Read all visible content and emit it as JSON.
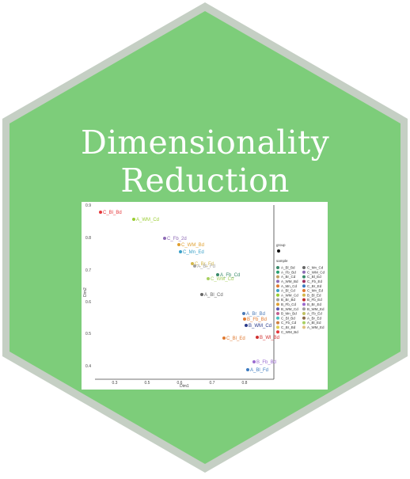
{
  "title": "Dimensionality Reduction",
  "colors": {
    "hex_fill": "#7dcd7a",
    "hex_border": "#c5cfc4",
    "title_text": "#ffffff"
  },
  "plot_icon": {
    "x_ticks": [
      "0.3",
      "0.5",
      "0.6",
      "0.7",
      "0.8"
    ],
    "y_ticks": [
      "0.9",
      "0.8",
      "0.7",
      "0.6",
      "0.5",
      "0.4"
    ],
    "xlabel": "Dim1",
    "ylabel": "Dim2",
    "legend_group_title": "group",
    "legend_sample_title": "sample",
    "points": [
      {
        "label": "C_Bl_Bd",
        "color": "#e5383b"
      },
      {
        "label": "A_WM_Cd",
        "color": "#9acd32"
      },
      {
        "label": "C_Fb_2d",
        "color": "#8e6bb5"
      },
      {
        "label": "C_WM_Bd",
        "color": "#e0a030"
      },
      {
        "label": "C_Mn_Ed",
        "color": "#3aa0c8"
      },
      {
        "label": "C_Br_Fd",
        "color": "#d4b84a"
      },
      {
        "label": "A_Bl_Fd",
        "color": "#a0a0a0"
      },
      {
        "label": "A_Fb_Cd",
        "color": "#3a8a6a"
      },
      {
        "label": "C_WM_Cd",
        "color": "#a8d060"
      },
      {
        "label": "A_Bl_Cd",
        "color": "#666666"
      },
      {
        "label": "A_Br_Bd",
        "color": "#4a7ab8"
      },
      {
        "label": "B_Fb_Bd",
        "color": "#e07a30"
      },
      {
        "label": "B_WM_Cd",
        "color": "#2a3a8a"
      },
      {
        "label": "C_Bl_Ed",
        "color": "#e07a30"
      },
      {
        "label": "B_Wl_Bd",
        "color": "#d03030"
      },
      {
        "label": "B_Fb_Bd",
        "color": "#9a6ad0"
      },
      {
        "label": "A_Bl_Fd",
        "color": "#3a7ac0"
      }
    ],
    "legend_items": [
      {
        "label": "A_Bl_Bd",
        "color": "#3a8a6a"
      },
      {
        "label": "A_Fb_Bd",
        "color": "#2aa070"
      },
      {
        "label": "A_Br_Cd",
        "color": "#c0a060"
      },
      {
        "label": "A_WM_Bd",
        "color": "#8e6bb5"
      },
      {
        "label": "A_Mn_Cd",
        "color": "#e07a30"
      },
      {
        "label": "A_Bl_Cd",
        "color": "#3aa0c8"
      },
      {
        "label": "A_WM_Cd",
        "color": "#9acd32"
      },
      {
        "label": "B_Br_Bd",
        "color": "#a0a0a0"
      },
      {
        "label": "B_Fb_Cd",
        "color": "#e0a030"
      },
      {
        "label": "B_WM_Cd",
        "color": "#5a5ab0"
      },
      {
        "label": "B_Mn_Bd",
        "color": "#c06090"
      },
      {
        "label": "C_Bl_Bd",
        "color": "#4ac0c0"
      },
      {
        "label": "C_Fb_Cd",
        "color": "#d08040"
      },
      {
        "label": "C_Br_Bd",
        "color": "#e0d050"
      },
      {
        "label": "C_WM_Bd",
        "color": "#e5383b"
      },
      {
        "label": "C_Mn_Cd",
        "color": "#666666"
      },
      {
        "label": "C_WM_Cd",
        "color": "#8e6bb5"
      },
      {
        "label": "C_Bl_Ed",
        "color": "#3a8a6a"
      },
      {
        "label": "C_Fb_Ed",
        "color": "#a03060"
      },
      {
        "label": "C_Br_Ed",
        "color": "#3a7ac0"
      },
      {
        "label": "C_Mn_Ed",
        "color": "#e07a30"
      },
      {
        "label": "B_Bl_Ed",
        "color": "#d4b84a"
      },
      {
        "label": "B_Fb_Ed",
        "color": "#c03030"
      },
      {
        "label": "B_Br_Ed",
        "color": "#9a6ad0"
      },
      {
        "label": "B_WM_Ed",
        "color": "#a0a0a0"
      },
      {
        "label": "A_Fb_Ed",
        "color": "#c0c060"
      },
      {
        "label": "A_Br_Ed",
        "color": "#8a6a4a"
      },
      {
        "label": "A_Bl_Ed",
        "color": "#a8d060"
      },
      {
        "label": "A_WM_Ed",
        "color": "#e0c080"
      }
    ]
  }
}
